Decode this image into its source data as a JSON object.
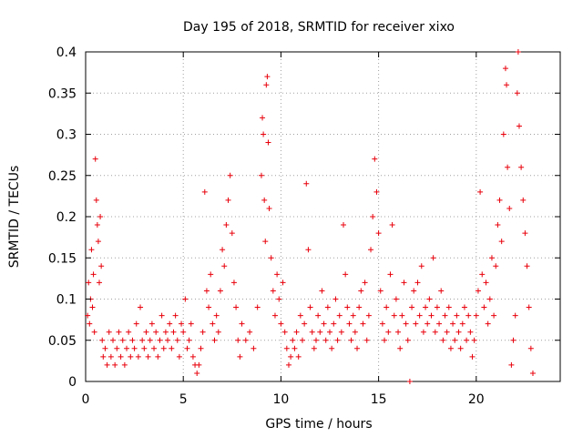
{
  "chart_data": {
    "type": "scatter",
    "title": "Day 195 of 2018, SRMTID for receiver xixo",
    "xlabel": "GPS time / hours",
    "ylabel": "SRMTID / TECUs",
    "xlim": [
      0,
      24.3
    ],
    "ylim": [
      0,
      0.4
    ],
    "x_ticks": [
      0,
      5,
      10,
      15,
      20
    ],
    "x_tick_labels": [
      "0",
      "5",
      "10",
      "15",
      "20"
    ],
    "y_ticks": [
      0,
      0.05,
      0.1,
      0.15,
      0.2,
      0.25,
      0.3,
      0.35,
      0.4
    ],
    "y_tick_labels": [
      "0",
      "0.05",
      "0.1",
      "0.15",
      "0.2",
      "0.25",
      "0.3",
      "0.35",
      "0.4"
    ],
    "grid": true,
    "marker": "+",
    "color": "#e8000b",
    "series": [
      {
        "name": "SRMTID",
        "points": [
          [
            0.1,
            0.08
          ],
          [
            0.15,
            0.12
          ],
          [
            0.2,
            0.07
          ],
          [
            0.25,
            0.1
          ],
          [
            0.3,
            0.16
          ],
          [
            0.35,
            0.09
          ],
          [
            0.4,
            0.13
          ],
          [
            0.45,
            0.06
          ],
          [
            0.5,
            0.27
          ],
          [
            0.55,
            0.22
          ],
          [
            0.6,
            0.19
          ],
          [
            0.65,
            0.17
          ],
          [
            0.7,
            0.12
          ],
          [
            0.75,
            0.2
          ],
          [
            0.8,
            0.14
          ],
          [
            0.85,
            0.05
          ],
          [
            0.9,
            0.03
          ],
          [
            1.0,
            0.04
          ],
          [
            1.1,
            0.02
          ],
          [
            1.2,
            0.06
          ],
          [
            1.3,
            0.03
          ],
          [
            1.4,
            0.05
          ],
          [
            1.5,
            0.02
          ],
          [
            1.6,
            0.04
          ],
          [
            1.7,
            0.06
          ],
          [
            1.8,
            0.03
          ],
          [
            1.9,
            0.05
          ],
          [
            2.0,
            0.02
          ],
          [
            2.1,
            0.04
          ],
          [
            2.2,
            0.06
          ],
          [
            2.3,
            0.03
          ],
          [
            2.4,
            0.05
          ],
          [
            2.5,
            0.04
          ],
          [
            2.6,
            0.07
          ],
          [
            2.7,
            0.03
          ],
          [
            2.8,
            0.09
          ],
          [
            2.9,
            0.05
          ],
          [
            3.0,
            0.04
          ],
          [
            3.1,
            0.06
          ],
          [
            3.2,
            0.03
          ],
          [
            3.3,
            0.05
          ],
          [
            3.4,
            0.07
          ],
          [
            3.5,
            0.04
          ],
          [
            3.6,
            0.06
          ],
          [
            3.7,
            0.03
          ],
          [
            3.8,
            0.05
          ],
          [
            3.9,
            0.08
          ],
          [
            4.0,
            0.04
          ],
          [
            4.1,
            0.06
          ],
          [
            4.2,
            0.05
          ],
          [
            4.3,
            0.07
          ],
          [
            4.4,
            0.04
          ],
          [
            4.5,
            0.06
          ],
          [
            4.6,
            0.08
          ],
          [
            4.7,
            0.05
          ],
          [
            4.8,
            0.03
          ],
          [
            4.9,
            0.07
          ],
          [
            5.0,
            0.06
          ],
          [
            5.1,
            0.1
          ],
          [
            5.2,
            0.04
          ],
          [
            5.3,
            0.05
          ],
          [
            5.4,
            0.07
          ],
          [
            5.5,
            0.03
          ],
          [
            5.6,
            0.02
          ],
          [
            5.7,
            0.01
          ],
          [
            5.8,
            0.02
          ],
          [
            5.9,
            0.04
          ],
          [
            6.0,
            0.06
          ],
          [
            6.1,
            0.23
          ],
          [
            6.2,
            0.11
          ],
          [
            6.3,
            0.09
          ],
          [
            6.4,
            0.13
          ],
          [
            6.5,
            0.07
          ],
          [
            6.6,
            0.05
          ],
          [
            6.7,
            0.08
          ],
          [
            6.8,
            0.06
          ],
          [
            6.9,
            0.11
          ],
          [
            7.0,
            0.16
          ],
          [
            7.1,
            0.14
          ],
          [
            7.2,
            0.19
          ],
          [
            7.3,
            0.22
          ],
          [
            7.4,
            0.25
          ],
          [
            7.5,
            0.18
          ],
          [
            7.6,
            0.12
          ],
          [
            7.7,
            0.09
          ],
          [
            7.8,
            0.05
          ],
          [
            7.9,
            0.03
          ],
          [
            8.0,
            0.07
          ],
          [
            8.2,
            0.05
          ],
          [
            8.4,
            0.06
          ],
          [
            8.6,
            0.04
          ],
          [
            8.8,
            0.09
          ],
          [
            9.0,
            0.25
          ],
          [
            9.05,
            0.32
          ],
          [
            9.1,
            0.3
          ],
          [
            9.15,
            0.22
          ],
          [
            9.2,
            0.17
          ],
          [
            9.25,
            0.36
          ],
          [
            9.3,
            0.37
          ],
          [
            9.35,
            0.29
          ],
          [
            9.4,
            0.21
          ],
          [
            9.5,
            0.15
          ],
          [
            9.6,
            0.11
          ],
          [
            9.7,
            0.08
          ],
          [
            9.8,
            0.13
          ],
          [
            9.9,
            0.1
          ],
          [
            10.0,
            0.07
          ],
          [
            10.1,
            0.12
          ],
          [
            10.2,
            0.06
          ],
          [
            10.3,
            0.04
          ],
          [
            10.4,
            0.02
          ],
          [
            10.5,
            0.03
          ],
          [
            10.6,
            0.05
          ],
          [
            10.7,
            0.04
          ],
          [
            10.8,
            0.06
          ],
          [
            10.9,
            0.03
          ],
          [
            11.0,
            0.08
          ],
          [
            11.1,
            0.05
          ],
          [
            11.2,
            0.07
          ],
          [
            11.3,
            0.24
          ],
          [
            11.4,
            0.16
          ],
          [
            11.5,
            0.09
          ],
          [
            11.6,
            0.06
          ],
          [
            11.7,
            0.04
          ],
          [
            11.8,
            0.05
          ],
          [
            11.9,
            0.08
          ],
          [
            12.0,
            0.06
          ],
          [
            12.1,
            0.11
          ],
          [
            12.2,
            0.07
          ],
          [
            12.3,
            0.05
          ],
          [
            12.4,
            0.09
          ],
          [
            12.5,
            0.06
          ],
          [
            12.6,
            0.04
          ],
          [
            12.7,
            0.07
          ],
          [
            12.8,
            0.1
          ],
          [
            12.9,
            0.05
          ],
          [
            13.0,
            0.08
          ],
          [
            13.1,
            0.06
          ],
          [
            13.2,
            0.19
          ],
          [
            13.3,
            0.13
          ],
          [
            13.4,
            0.09
          ],
          [
            13.5,
            0.07
          ],
          [
            13.6,
            0.05
          ],
          [
            13.7,
            0.08
          ],
          [
            13.8,
            0.06
          ],
          [
            13.9,
            0.04
          ],
          [
            14.0,
            0.09
          ],
          [
            14.1,
            0.11
          ],
          [
            14.2,
            0.07
          ],
          [
            14.3,
            0.12
          ],
          [
            14.4,
            0.05
          ],
          [
            14.5,
            0.08
          ],
          [
            14.6,
            0.16
          ],
          [
            14.7,
            0.2
          ],
          [
            14.8,
            0.27
          ],
          [
            14.9,
            0.23
          ],
          [
            15.0,
            0.18
          ],
          [
            15.1,
            0.11
          ],
          [
            15.2,
            0.07
          ],
          [
            15.3,
            0.05
          ],
          [
            15.4,
            0.09
          ],
          [
            15.5,
            0.06
          ],
          [
            15.6,
            0.13
          ],
          [
            15.7,
            0.19
          ],
          [
            15.8,
            0.08
          ],
          [
            15.9,
            0.1
          ],
          [
            16.0,
            0.06
          ],
          [
            16.1,
            0.04
          ],
          [
            16.2,
            0.08
          ],
          [
            16.3,
            0.12
          ],
          [
            16.4,
            0.07
          ],
          [
            16.5,
            0.05
          ],
          [
            16.6,
            0.0
          ],
          [
            16.7,
            0.09
          ],
          [
            16.8,
            0.11
          ],
          [
            16.9,
            0.07
          ],
          [
            17.0,
            0.12
          ],
          [
            17.1,
            0.08
          ],
          [
            17.2,
            0.14
          ],
          [
            17.3,
            0.06
          ],
          [
            17.4,
            0.09
          ],
          [
            17.5,
            0.07
          ],
          [
            17.6,
            0.1
          ],
          [
            17.7,
            0.08
          ],
          [
            17.8,
            0.15
          ],
          [
            17.9,
            0.06
          ],
          [
            18.0,
            0.09
          ],
          [
            18.1,
            0.07
          ],
          [
            18.2,
            0.11
          ],
          [
            18.3,
            0.05
          ],
          [
            18.4,
            0.08
          ],
          [
            18.5,
            0.06
          ],
          [
            18.6,
            0.09
          ],
          [
            18.7,
            0.04
          ],
          [
            18.8,
            0.07
          ],
          [
            18.9,
            0.05
          ],
          [
            19.0,
            0.08
          ],
          [
            19.1,
            0.06
          ],
          [
            19.2,
            0.04
          ],
          [
            19.3,
            0.07
          ],
          [
            19.4,
            0.09
          ],
          [
            19.5,
            0.05
          ],
          [
            19.6,
            0.08
          ],
          [
            19.7,
            0.06
          ],
          [
            19.8,
            0.03
          ],
          [
            19.9,
            0.05
          ],
          [
            20.0,
            0.08
          ],
          [
            20.1,
            0.11
          ],
          [
            20.2,
            0.23
          ],
          [
            20.3,
            0.13
          ],
          [
            20.4,
            0.09
          ],
          [
            20.5,
            0.12
          ],
          [
            20.6,
            0.07
          ],
          [
            20.7,
            0.1
          ],
          [
            20.8,
            0.15
          ],
          [
            20.9,
            0.08
          ],
          [
            21.0,
            0.14
          ],
          [
            21.1,
            0.19
          ],
          [
            21.2,
            0.22
          ],
          [
            21.3,
            0.17
          ],
          [
            21.4,
            0.3
          ],
          [
            21.5,
            0.38
          ],
          [
            21.55,
            0.36
          ],
          [
            21.6,
            0.26
          ],
          [
            21.7,
            0.21
          ],
          [
            21.8,
            0.02
          ],
          [
            21.9,
            0.05
          ],
          [
            22.0,
            0.08
          ],
          [
            22.1,
            0.35
          ],
          [
            22.15,
            0.4
          ],
          [
            22.2,
            0.31
          ],
          [
            22.3,
            0.26
          ],
          [
            22.4,
            0.22
          ],
          [
            22.5,
            0.18
          ],
          [
            22.6,
            0.14
          ],
          [
            22.7,
            0.09
          ],
          [
            22.8,
            0.04
          ],
          [
            22.9,
            0.01
          ]
        ]
      }
    ]
  }
}
